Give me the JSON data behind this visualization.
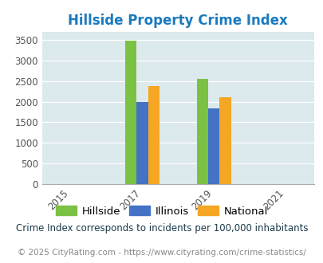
{
  "title": "Hillside Property Crime Index",
  "title_color": "#1a7abf",
  "years": [
    2015,
    2017,
    2019,
    2021
  ],
  "bar_years": [
    2017,
    2019
  ],
  "hillside": [
    3480,
    2560
  ],
  "illinois": [
    2000,
    1840
  ],
  "national": [
    2380,
    2110
  ],
  "bar_colors": {
    "hillside": "#7bc144",
    "illinois": "#4472c4",
    "national": "#f5a623"
  },
  "ylim": [
    0,
    3700
  ],
  "yticks": [
    0,
    500,
    1000,
    1500,
    2000,
    2500,
    3000,
    3500
  ],
  "xlim": [
    2014.2,
    2021.8
  ],
  "background_color": "#dce9ed",
  "legend_labels": [
    "Hillside",
    "Illinois",
    "National"
  ],
  "footnote1": "Crime Index corresponds to incidents per 100,000 inhabitants",
  "footnote2": "© 2025 CityRating.com - https://www.cityrating.com/crime-statistics/",
  "bar_width": 0.32
}
